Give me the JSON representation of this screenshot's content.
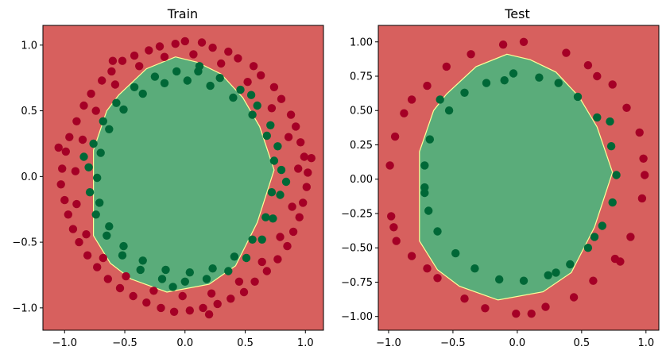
{
  "colors": {
    "region_outer": "#d7605e",
    "region_inner": "#5aac7a",
    "boundary_line": "#ffff9a",
    "point_outer": "#a50026",
    "point_inner": "#006837"
  },
  "chart_data": [
    {
      "type": "scatter",
      "title": "Train",
      "xlim": [
        -1.18,
        1.15
      ],
      "ylim": [
        -1.17,
        1.15
      ],
      "x_ticks": [
        -1.0,
        -0.5,
        0.0,
        0.5,
        1.0
      ],
      "x_tick_labels": [
        "−1.0",
        "−0.5",
        "0.0",
        "0.5",
        "1.0"
      ],
      "y_ticks": [
        -1.0,
        -0.5,
        0.0,
        0.5,
        1.0
      ],
      "y_tick_labels": [
        "−1.0",
        "−0.5",
        "0.0",
        "0.5",
        "1.0"
      ],
      "grid": false,
      "decision_boundary": [
        [
          -0.08,
          0.91
        ],
        [
          0.1,
          0.87
        ],
        [
          0.3,
          0.78
        ],
        [
          0.48,
          0.6
        ],
        [
          0.62,
          0.38
        ],
        [
          0.74,
          0.05
        ],
        [
          0.6,
          -0.35
        ],
        [
          0.42,
          -0.68
        ],
        [
          0.2,
          -0.82
        ],
        [
          -0.15,
          -0.88
        ],
        [
          -0.45,
          -0.78
        ],
        [
          -0.62,
          -0.66
        ],
        [
          -0.76,
          -0.45
        ],
        [
          -0.76,
          0.2
        ],
        [
          -0.65,
          0.5
        ],
        [
          -0.55,
          0.62
        ],
        [
          -0.32,
          0.82
        ]
      ],
      "series": [
        {
          "label": 0,
          "radius": 1.0,
          "values": [
            [
              1.02,
              0.03
            ],
            [
              0.96,
              0.26
            ],
            [
              0.88,
              0.47
            ],
            [
              0.74,
              0.68
            ],
            [
              0.57,
              0.84
            ],
            [
              0.36,
              0.95
            ],
            [
              0.14,
              1.02
            ],
            [
              -0.08,
              1.01
            ],
            [
              -0.3,
              0.96
            ],
            [
              -0.52,
              0.88
            ],
            [
              -0.69,
              0.73
            ],
            [
              -0.84,
              0.54
            ],
            [
              -0.96,
              0.3
            ],
            [
              -1.02,
              0.06
            ],
            [
              -1.0,
              -0.18
            ],
            [
              -0.93,
              -0.4
            ],
            [
              -0.81,
              -0.6
            ],
            [
              -0.64,
              -0.78
            ],
            [
              -0.43,
              -0.91
            ],
            [
              -0.2,
              -1.0
            ],
            [
              0.04,
              -1.02
            ],
            [
              0.27,
              -0.97
            ],
            [
              0.49,
              -0.88
            ],
            [
              0.68,
              -0.72
            ],
            [
              0.85,
              -0.53
            ],
            [
              0.95,
              -0.31
            ],
            [
              1.01,
              -0.08
            ],
            [
              0.99,
              0.15
            ],
            [
              0.92,
              0.38
            ],
            [
              0.8,
              0.59
            ],
            [
              0.63,
              0.77
            ],
            [
              0.44,
              0.9
            ],
            [
              0.23,
              0.98
            ],
            [
              0.0,
              1.03
            ],
            [
              -0.21,
              0.99
            ],
            [
              -0.42,
              0.92
            ],
            [
              -0.61,
              0.8
            ],
            [
              -0.78,
              0.63
            ],
            [
              -0.9,
              0.42
            ],
            [
              -0.99,
              0.19
            ],
            [
              -1.03,
              -0.06
            ],
            [
              -0.97,
              -0.29
            ],
            [
              -0.88,
              -0.5
            ],
            [
              -0.73,
              -0.69
            ],
            [
              -0.54,
              -0.85
            ],
            [
              -0.32,
              -0.96
            ],
            [
              -0.09,
              -1.03
            ],
            [
              0.15,
              -1.0
            ],
            [
              0.38,
              -0.93
            ],
            [
              0.58,
              -0.8
            ],
            [
              0.77,
              -0.63
            ],
            [
              0.9,
              -0.42
            ],
            [
              0.98,
              -0.2
            ],
            [
              0.94,
              0.06
            ],
            [
              0.86,
              0.3
            ],
            [
              0.72,
              0.52
            ],
            [
              0.52,
              0.72
            ],
            [
              0.3,
              0.86
            ],
            [
              0.07,
              0.93
            ],
            [
              -0.17,
              0.91
            ],
            [
              -0.38,
              0.84
            ],
            [
              -0.58,
              0.7
            ],
            [
              -0.74,
              0.5
            ],
            [
              -0.85,
              0.28
            ],
            [
              -0.91,
              0.04
            ],
            [
              -0.9,
              -0.21
            ],
            [
              -0.82,
              -0.44
            ],
            [
              -0.68,
              -0.62
            ],
            [
              -0.49,
              -0.76
            ],
            [
              -0.26,
              -0.87
            ],
            [
              -0.02,
              -0.91
            ],
            [
              0.22,
              -0.89
            ],
            [
              0.45,
              -0.8
            ],
            [
              0.64,
              -0.65
            ],
            [
              0.79,
              -0.46
            ],
            [
              0.89,
              -0.23
            ],
            [
              1.05,
              0.14
            ],
            [
              -1.05,
              0.22
            ],
            [
              0.2,
              -1.05
            ],
            [
              -0.6,
              0.88
            ]
          ]
        },
        {
          "label": 1,
          "radius": 0.8,
          "values": [
            [
              0.8,
              0.05
            ],
            [
              0.77,
              0.23
            ],
            [
              0.71,
              0.39
            ],
            [
              0.6,
              0.54
            ],
            [
              0.46,
              0.66
            ],
            [
              0.29,
              0.75
            ],
            [
              0.11,
              0.8
            ],
            [
              -0.07,
              0.8
            ],
            [
              -0.25,
              0.76
            ],
            [
              -0.42,
              0.68
            ],
            [
              -0.57,
              0.56
            ],
            [
              -0.68,
              0.42
            ],
            [
              -0.76,
              0.25
            ],
            [
              -0.8,
              0.07
            ],
            [
              -0.79,
              -0.12
            ],
            [
              -0.74,
              -0.29
            ],
            [
              -0.65,
              -0.45
            ],
            [
              -0.52,
              -0.6
            ],
            [
              -0.37,
              -0.71
            ],
            [
              -0.19,
              -0.78
            ],
            [
              0.0,
              -0.8
            ],
            [
              0.18,
              -0.78
            ],
            [
              0.36,
              -0.72
            ],
            [
              0.51,
              -0.62
            ],
            [
              0.64,
              -0.48
            ],
            [
              0.73,
              -0.32
            ],
            [
              0.79,
              -0.14
            ],
            [
              0.74,
              0.12
            ],
            [
              0.68,
              0.31
            ],
            [
              0.56,
              0.47
            ],
            [
              0.4,
              0.6
            ],
            [
              0.21,
              0.69
            ],
            [
              0.02,
              0.73
            ],
            [
              -0.17,
              0.71
            ],
            [
              -0.35,
              0.63
            ],
            [
              -0.51,
              0.51
            ],
            [
              -0.63,
              0.36
            ],
            [
              -0.7,
              0.18
            ],
            [
              -0.73,
              -0.01
            ],
            [
              -0.71,
              -0.2
            ],
            [
              -0.63,
              -0.38
            ],
            [
              -0.51,
              -0.53
            ],
            [
              -0.35,
              -0.64
            ],
            [
              -0.16,
              -0.71
            ],
            [
              0.04,
              -0.73
            ],
            [
              0.23,
              -0.7
            ],
            [
              0.41,
              -0.61
            ],
            [
              0.56,
              -0.48
            ],
            [
              0.67,
              -0.31
            ],
            [
              0.72,
              -0.12
            ],
            [
              0.84,
              -0.04
            ],
            [
              -0.84,
              0.15
            ],
            [
              0.12,
              0.84
            ],
            [
              -0.1,
              -0.84
            ],
            [
              0.55,
              0.62
            ]
          ]
        }
      ]
    },
    {
      "type": "scatter",
      "title": "Test",
      "xlim": [
        -1.08,
        1.1
      ],
      "ylim": [
        -1.1,
        1.12
      ],
      "x_ticks": [
        -1.0,
        -0.5,
        0.0,
        0.5,
        1.0
      ],
      "x_tick_labels": [
        "−1.0",
        "−0.5",
        "0.0",
        "0.5",
        "1.0"
      ],
      "y_ticks": [
        -1.0,
        -0.75,
        -0.5,
        -0.25,
        0.0,
        0.25,
        0.5,
        0.75,
        1.0
      ],
      "y_tick_labels": [
        "−1.00",
        "−0.75",
        "−0.50",
        "−0.25",
        "0.00",
        "0.25",
        "0.50",
        "0.75",
        "1.00"
      ],
      "grid": false,
      "decision_boundary": [
        [
          -0.08,
          0.91
        ],
        [
          0.1,
          0.87
        ],
        [
          0.3,
          0.78
        ],
        [
          0.48,
          0.6
        ],
        [
          0.62,
          0.38
        ],
        [
          0.74,
          0.05
        ],
        [
          0.6,
          -0.35
        ],
        [
          0.42,
          -0.68
        ],
        [
          0.2,
          -0.82
        ],
        [
          -0.15,
          -0.88
        ],
        [
          -0.45,
          -0.78
        ],
        [
          -0.62,
          -0.66
        ],
        [
          -0.76,
          -0.45
        ],
        [
          -0.76,
          0.2
        ],
        [
          -0.65,
          0.5
        ],
        [
          -0.55,
          0.62
        ],
        [
          -0.32,
          0.82
        ]
      ],
      "series": [
        {
          "label": 0,
          "radius": 1.0,
          "values": [
            [
              0.98,
              0.15
            ],
            [
              0.95,
              0.34
            ],
            [
              0.85,
              0.52
            ],
            [
              0.74,
              0.69
            ],
            [
              0.55,
              0.83
            ],
            [
              0.38,
              0.92
            ],
            [
              0.05,
              1.0
            ],
            [
              -0.11,
              0.98
            ],
            [
              -0.36,
              0.91
            ],
            [
              -0.55,
              0.82
            ],
            [
              -0.7,
              0.68
            ],
            [
              -0.88,
              0.48
            ],
            [
              -0.95,
              0.31
            ],
            [
              -0.99,
              0.1
            ],
            [
              -0.98,
              -0.27
            ],
            [
              -0.94,
              -0.45
            ],
            [
              -0.82,
              -0.56
            ],
            [
              -0.62,
              -0.72
            ],
            [
              -0.41,
              -0.87
            ],
            [
              -0.25,
              -0.94
            ],
            [
              -0.01,
              -0.98
            ],
            [
              0.22,
              -0.93
            ],
            [
              0.44,
              -0.86
            ],
            [
              0.59,
              -0.74
            ],
            [
              0.76,
              -0.58
            ],
            [
              0.88,
              -0.42
            ],
            [
              0.97,
              -0.14
            ],
            [
              0.99,
              0.03
            ],
            [
              0.62,
              0.75
            ],
            [
              -0.82,
              0.58
            ],
            [
              -0.96,
              -0.35
            ],
            [
              0.11,
              -0.98
            ],
            [
              -0.7,
              -0.65
            ],
            [
              0.8,
              -0.6
            ]
          ]
        },
        {
          "label": 1,
          "radius": 0.8,
          "values": [
            [
              0.77,
              0.03
            ],
            [
              0.73,
              0.24
            ],
            [
              0.62,
              0.45
            ],
            [
              0.47,
              0.6
            ],
            [
              0.32,
              0.7
            ],
            [
              0.17,
              0.74
            ],
            [
              -0.03,
              0.77
            ],
            [
              -0.24,
              0.7
            ],
            [
              -0.41,
              0.63
            ],
            [
              -0.53,
              0.5
            ],
            [
              -0.68,
              0.29
            ],
            [
              -0.72,
              0.1
            ],
            [
              -0.72,
              -0.06
            ],
            [
              -0.69,
              -0.23
            ],
            [
              -0.62,
              -0.38
            ],
            [
              -0.48,
              -0.54
            ],
            [
              -0.33,
              -0.65
            ],
            [
              -0.14,
              -0.73
            ],
            [
              0.05,
              -0.74
            ],
            [
              0.24,
              -0.7
            ],
            [
              0.41,
              -0.62
            ],
            [
              0.55,
              -0.5
            ],
            [
              0.66,
              -0.34
            ],
            [
              0.74,
              -0.17
            ],
            [
              0.72,
              0.42
            ],
            [
              -0.6,
              0.58
            ],
            [
              0.3,
              -0.68
            ],
            [
              -0.1,
              0.72
            ],
            [
              0.6,
              -0.42
            ],
            [
              -0.72,
              -0.1
            ]
          ]
        }
      ]
    }
  ]
}
